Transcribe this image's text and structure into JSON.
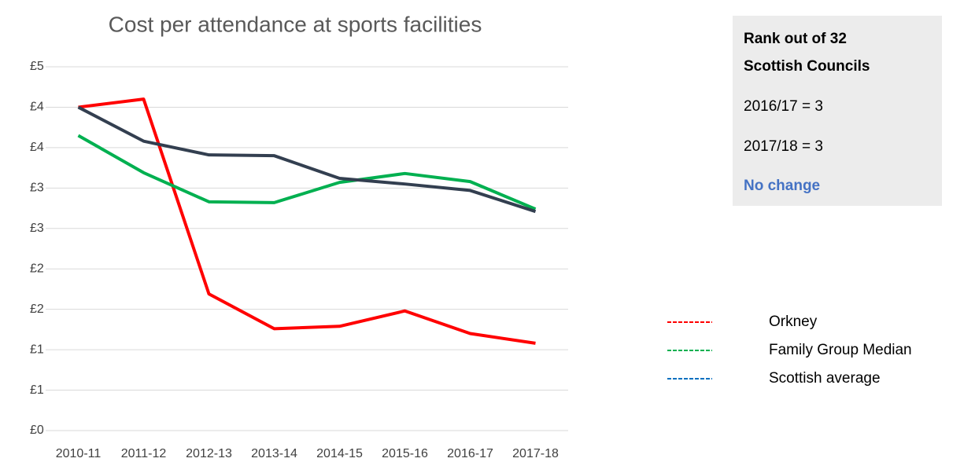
{
  "chart_data": {
    "type": "line",
    "title": "Cost per attendance at sports facilities",
    "categories": [
      "2010-11",
      "2011-12",
      "2012-13",
      "2013-14",
      "2014-15",
      "2015-16",
      "2016-17",
      "2017-18"
    ],
    "series": [
      {
        "name": "Orkney",
        "color": "#ff0000",
        "legend_color": "#ff0000",
        "values": [
          4.0,
          4.1,
          1.69,
          1.26,
          1.29,
          1.48,
          1.2,
          1.08
        ]
      },
      {
        "name": "Family Group Median",
        "color": "#00b050",
        "legend_color": "#00b050",
        "values": [
          3.65,
          3.19,
          2.83,
          2.82,
          3.07,
          3.18,
          3.08,
          2.74
        ]
      },
      {
        "name": "Scottish average",
        "color": "#333f50",
        "legend_color": "#0070c0",
        "values": [
          4.0,
          3.58,
          3.41,
          3.4,
          3.12,
          3.05,
          2.97,
          2.71
        ]
      }
    ],
    "ylim": [
      0,
      4.5
    ],
    "yticks": [
      {
        "value": 0,
        "label": "£0"
      },
      {
        "value": 0.5,
        "label": "£1"
      },
      {
        "value": 1,
        "label": "£1"
      },
      {
        "value": 1.5,
        "label": "£2"
      },
      {
        "value": 2,
        "label": "£2"
      },
      {
        "value": 2.5,
        "label": "£3"
      },
      {
        "value": 3,
        "label": "£3"
      },
      {
        "value": 3.5,
        "label": "£4"
      },
      {
        "value": 4,
        "label": "£4"
      },
      {
        "value": 4.5,
        "label": "£5"
      }
    ],
    "grid": true
  },
  "rank_box": {
    "heading": [
      "Rank out of 32",
      "Scottish Councils"
    ],
    "lines": [
      "2016/17 = 3",
      "2017/18 = 3"
    ],
    "status": "No change"
  }
}
